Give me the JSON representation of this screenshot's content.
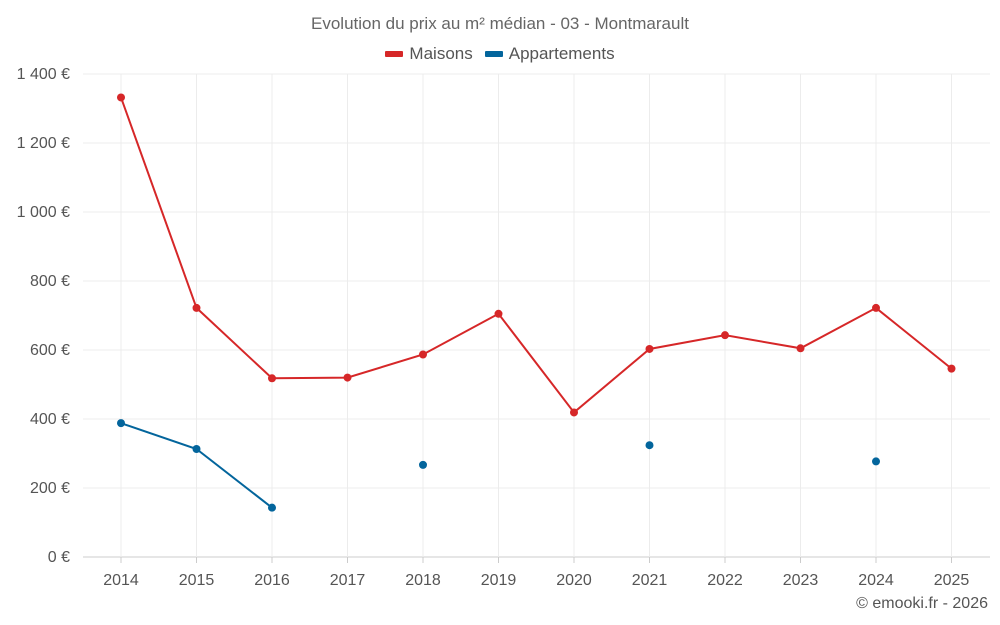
{
  "colors": {
    "maisons": "#d62728",
    "appartements": "#03659c",
    "grid": "#ececec",
    "axis": "#cccccc"
  },
  "credit": "© emooki.fr - 2026",
  "chart_data": {
    "type": "line",
    "title": "Evolution du prix au m² médian - 03 - Montmarault",
    "xlabel": "",
    "ylabel": "",
    "categories": [
      "2014",
      "2015",
      "2016",
      "2017",
      "2018",
      "2019",
      "2020",
      "2021",
      "2022",
      "2023",
      "2024",
      "2025"
    ],
    "ylim": [
      0,
      1400
    ],
    "yticks": [
      0,
      200,
      400,
      600,
      800,
      1000,
      1200,
      1400
    ],
    "ytick_labels": [
      "0 €",
      "200 €",
      "400 €",
      "600 €",
      "800 €",
      "1 000 €",
      "1 200 €",
      "1 400 €"
    ],
    "grid": true,
    "legend": "top-center",
    "series": [
      {
        "name": "Maisons",
        "color_key": "maisons",
        "values": [
          1332,
          722,
          518,
          520,
          587,
          705,
          419,
          603,
          643,
          605,
          722,
          546
        ]
      },
      {
        "name": "Appartements",
        "color_key": "appartements",
        "values": [
          388,
          313,
          143,
          null,
          267,
          null,
          null,
          324,
          null,
          null,
          277,
          null
        ]
      }
    ]
  }
}
